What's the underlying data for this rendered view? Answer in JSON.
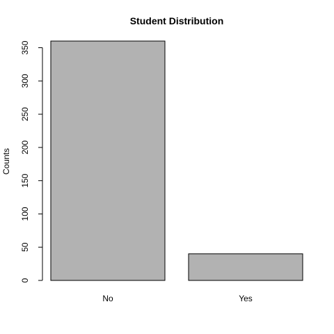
{
  "chart_data": {
    "type": "bar",
    "title": "Student Distribution",
    "xlabel": "",
    "ylabel": "Counts",
    "categories": [
      "No",
      "Yes"
    ],
    "values": [
      360,
      40
    ],
    "ylim": [
      0,
      360
    ],
    "yticks": [
      "0",
      "50",
      "100",
      "150",
      "200",
      "250",
      "300",
      "350"
    ],
    "grid": false,
    "legend": "none",
    "bar_color": "#b2b2b2",
    "border_color": "#000000"
  }
}
